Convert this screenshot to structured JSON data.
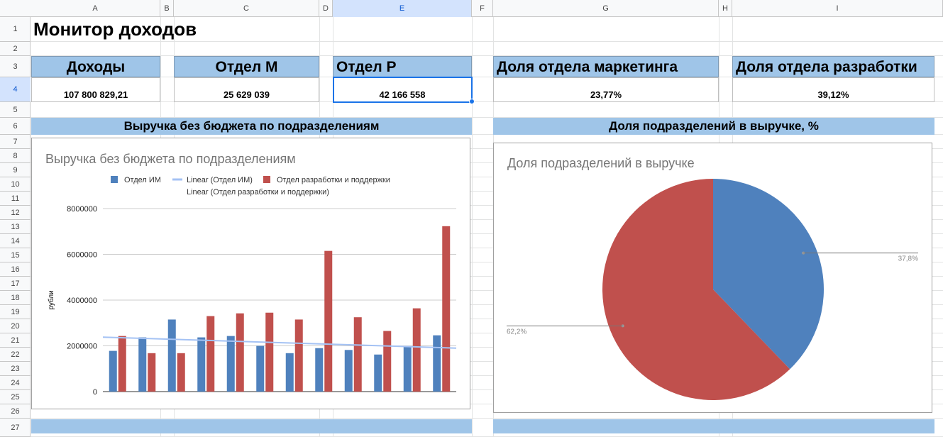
{
  "columns": [
    "A",
    "B",
    "C",
    "D",
    "E",
    "F",
    "G",
    "H",
    "I"
  ],
  "rows": [
    "1",
    "2",
    "3",
    "4",
    "5",
    "6",
    "7",
    "8",
    "9",
    "10",
    "11",
    "12",
    "13",
    "14",
    "15",
    "16",
    "17",
    "18",
    "19",
    "20",
    "21",
    "22",
    "23",
    "24",
    "25",
    "26",
    "27"
  ],
  "selected_column": "E",
  "selected_row": "4",
  "sheet_title": "Монитор доходов",
  "kpis": [
    {
      "label": "Доходы",
      "value": "107 800 829,21"
    },
    {
      "label": "Отдел М",
      "value": "25 629 039"
    },
    {
      "label": "Отдел Р",
      "value": "42 166 558"
    },
    {
      "label": "Доля отдела маркетинга",
      "value": "23,77%"
    },
    {
      "label": "Доля отдела разработки",
      "value": "39,12%"
    }
  ],
  "bands": {
    "left": "Выручка без бюджета по подразделениям",
    "right": "Доля подразделений в выручке, %"
  },
  "colors": {
    "blue": "#4f81bd",
    "red": "#c0504d",
    "trend_blue": "#a4c2f4",
    "header_fill": "#9fc5e8",
    "selection": "#1a73e8"
  },
  "chart_data": [
    {
      "type": "bar",
      "title": "Выручка без бюджета по подразделениям",
      "ylabel": "рубли",
      "ylim": [
        0,
        8000000
      ],
      "yticks": [
        "0",
        "2000000",
        "4000000",
        "6000000",
        "8000000"
      ],
      "yticks_values": [
        0,
        2000000,
        4000000,
        6000000,
        8000000
      ],
      "categories": 12,
      "legend": [
        "Отдел ИМ",
        "Linear (Отдел ИМ)",
        "Отдел разработки и поддержки",
        "Linear (Отдел разработки и поддержки)"
      ],
      "legend_position": "top",
      "grid": true,
      "series": [
        {
          "name": "Отдел ИМ",
          "values": [
            1780000,
            2370000,
            3150000,
            2370000,
            2430000,
            2000000,
            1680000,
            1900000,
            1820000,
            1620000,
            1980000,
            2460000
          ]
        },
        {
          "name": "Отдел разработки и поддержки",
          "values": [
            2430000,
            1680000,
            1680000,
            3300000,
            3420000,
            3450000,
            3150000,
            6150000,
            3250000,
            2650000,
            3640000,
            7230000
          ]
        }
      ],
      "trendline": {
        "name": "Linear (Отдел ИМ)",
        "start": 2380000,
        "end": 1900000
      }
    },
    {
      "type": "pie",
      "title": "Доля подразделений в выручке",
      "slices": [
        {
          "label": "37,8%",
          "value": 37.8
        },
        {
          "label": "62,2%",
          "value": 62.2
        }
      ]
    }
  ]
}
